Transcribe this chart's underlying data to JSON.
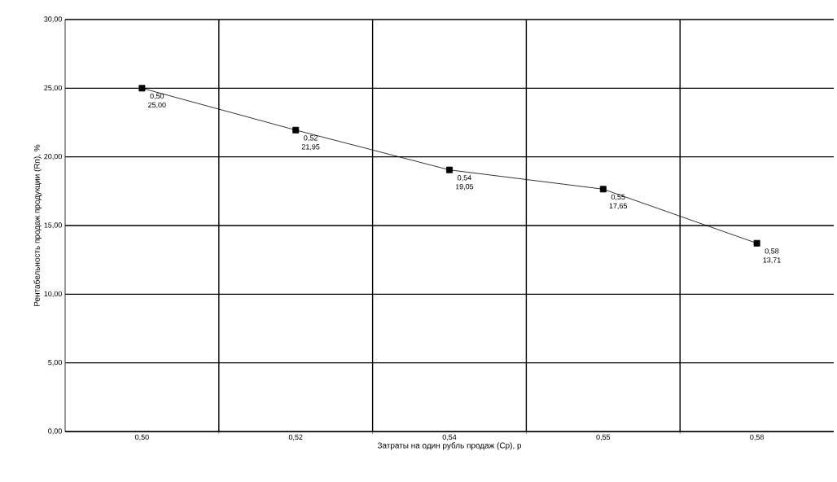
{
  "chart_data": {
    "type": "line",
    "xlabel": "Затраты на один рубль продаж (Ср), р",
    "ylabel": "Рентабельность продаж продукции (Rп), %",
    "categories": [
      "0,50",
      "0,52",
      "0,54",
      "0,55",
      "0,58"
    ],
    "series": [
      {
        "color": "#000000",
        "values": [
          25.0,
          21.95,
          19.05,
          17.65,
          13.71
        ],
        "value_labels": [
          "0,50 25,00",
          "0,52 21,95",
          "0,54 19,05",
          "0,55 17,65",
          "0,58 13,71"
        ]
      }
    ],
    "ylim": [
      0,
      30
    ],
    "yticks": [
      {
        "value": 0,
        "label": "0,00"
      },
      {
        "value": 5,
        "label": "5,00"
      },
      {
        "value": 10,
        "label": "10,00"
      },
      {
        "value": 15,
        "label": "15,00"
      },
      {
        "value": 20,
        "label": "20,00"
      },
      {
        "value": 25,
        "label": "25,00"
      },
      {
        "value": 30,
        "label": "30,00"
      }
    ],
    "grid": true,
    "marker": "square",
    "line_style": "solid"
  }
}
